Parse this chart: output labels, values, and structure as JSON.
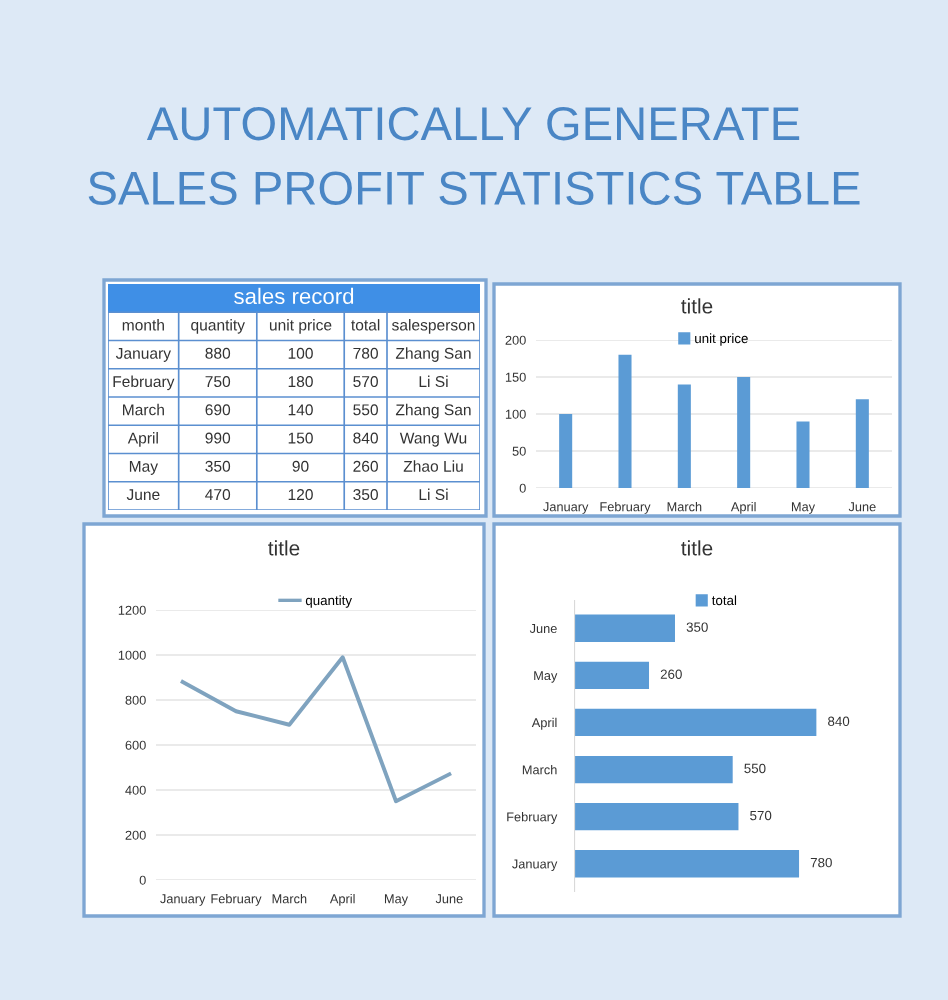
{
  "chart_data": [
    {
      "type": "other",
      "title": "AUTOMATICALLY GENERATE\nSALES PROFIT STATISTICS TABLE",
      "subtitle": "sales record",
      "categories": [
        "month",
        "quantity",
        "unit price",
        "total",
        "salesperson"
      ],
      "annotations": [
        "January",
        "880",
        "100",
        "780",
        "Zhang San",
        "February",
        "750",
        "180",
        "570",
        "Li Si",
        "March",
        "690",
        "140",
        "550",
        "Zhang San",
        "April",
        "990",
        "150",
        "840",
        "Wang Wu",
        "May",
        "350",
        "90",
        "260",
        "Zhao Liu",
        "June",
        "470",
        "120",
        "350",
        "Li Si"
      ]
    },
    {
      "type": "bar",
      "title": "title",
      "categories": [
        "January",
        "February",
        "March",
        "April",
        "May",
        "June"
      ],
      "series": [
        {
          "name": "unit price",
          "color": "#5b9bd5",
          "values": [
            100,
            180,
            140,
            150,
            90,
            120
          ]
        }
      ],
      "ylim": [
        0,
        200
      ],
      "yticks": [
        0,
        50,
        100,
        150,
        200
      ],
      "grid": "y",
      "legend": "top"
    },
    {
      "type": "line",
      "title": "title",
      "categories": [
        "January",
        "February",
        "March",
        "April",
        "May",
        "June"
      ],
      "series": [
        {
          "name": "quantity",
          "color": "#7fa3bf",
          "values": [
            880,
            750,
            690,
            990,
            350,
            470
          ]
        }
      ],
      "ylim": [
        0,
        1200
      ],
      "yticks": [
        0,
        200,
        400,
        600,
        800,
        1000,
        1200
      ],
      "grid": "y",
      "legend": "top"
    },
    {
      "type": "bar",
      "orientation": "horizontal",
      "title": "title",
      "categories": [
        "June",
        "May",
        "April",
        "March",
        "February",
        "January"
      ],
      "series": [
        {
          "name": "total",
          "color": "#5b9bd5",
          "values": [
            350,
            260,
            840,
            550,
            570,
            780
          ]
        }
      ],
      "data_labels": true,
      "legend": "top"
    }
  ]
}
